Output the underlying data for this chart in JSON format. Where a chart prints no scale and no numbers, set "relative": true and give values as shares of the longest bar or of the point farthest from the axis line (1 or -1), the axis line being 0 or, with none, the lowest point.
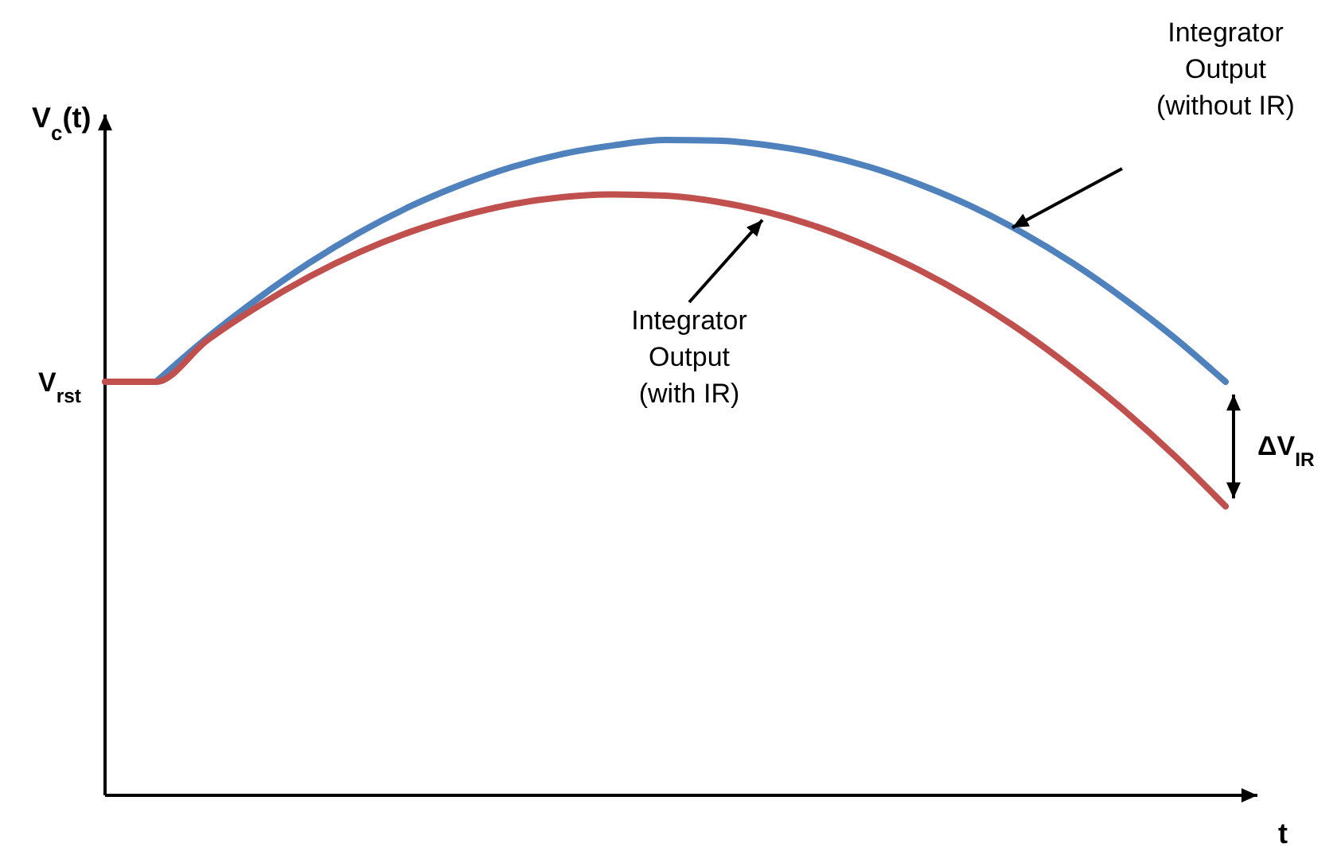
{
  "chart_data": {
    "type": "line",
    "relative": true,
    "xlabel": "t",
    "ylabel": "V$_{c}$(t)",
    "categories": [
      null,
      null,
      null,
      null,
      null,
      null,
      null,
      null,
      null,
      null,
      null,
      null,
      null,
      null,
      null,
      null,
      null,
      null,
      null,
      null,
      null,
      null,
      null
    ],
    "series": [
      {
        "color": "#4f81bd",
        "values": [
          null,
          0.631,
          0.698,
          0.758,
          0.812,
          0.859,
          0.899,
          0.932,
          0.959,
          0.979,
          0.992,
          1.0,
          0.999,
          0.992,
          0.979,
          0.959,
          0.932,
          0.899,
          0.859,
          0.812,
          0.758,
          0.698,
          0.631
        ]
      },
      {
        "color": "#c0504d",
        "values": [
          0.631,
          0.631,
          0.694,
          0.746,
          0.791,
          0.829,
          0.86,
          0.884,
          0.902,
          0.913,
          0.917,
          0.915,
          0.906,
          0.89,
          0.867,
          0.837,
          0.801,
          0.758,
          0.708,
          0.651,
          0.588,
          0.518,
          0.441
        ]
      }
    ],
    "annotations": [
      "Integrator\nOutput\n(without IR)",
      "Integrator\nOutput\n(with IR)",
      "ΔV$_{IR}$",
      "V$_{rst}$"
    ]
  }
}
